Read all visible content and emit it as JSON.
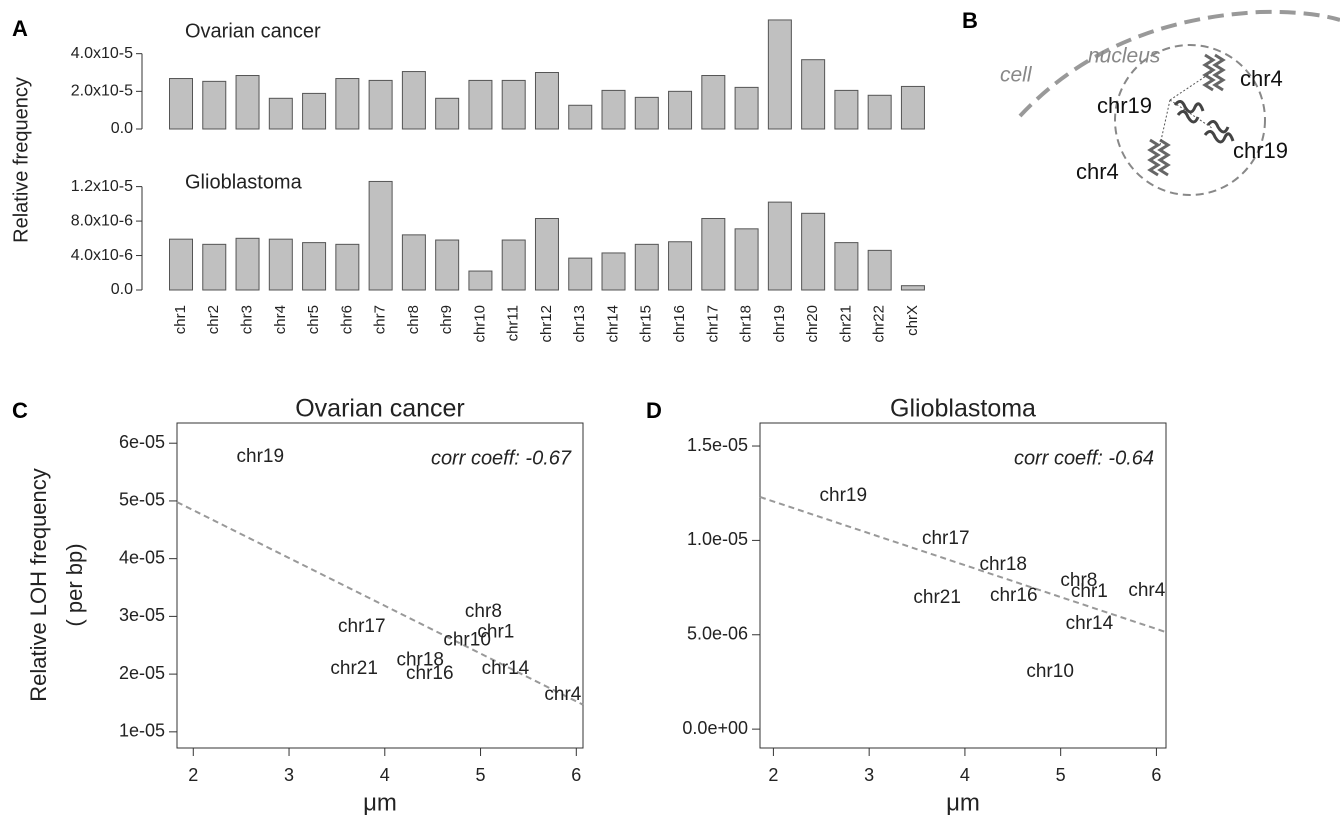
{
  "chart_data": [
    {
      "type": "bar",
      "label": "A",
      "ylabel": "Relative frequency",
      "color": "#c0c0c0",
      "categories": [
        "chr1",
        "chr2",
        "chr3",
        "chr4",
        "chr5",
        "chr6",
        "chr7",
        "chr8",
        "chr9",
        "chr10",
        "chr11",
        "chr12",
        "chr13",
        "chr14",
        "chr15",
        "chr16",
        "chr17",
        "chr18",
        "chr19",
        "chr20",
        "chr21",
        "chr22",
        "chrX"
      ],
      "series": [
        {
          "name": "Ovarian cancer",
          "values": [
            2.68e-05,
            2.53e-05,
            2.84e-05,
            1.63e-05,
            1.89e-05,
            2.68e-05,
            2.58e-05,
            3.05e-05,
            1.63e-05,
            2.58e-05,
            2.58e-05,
            3e-05,
            1.26e-05,
            2.05e-05,
            1.68e-05,
            2e-05,
            2.84e-05,
            2.21e-05,
            5.79e-05,
            3.68e-05,
            2.05e-05,
            1.79e-05,
            2.26e-05
          ],
          "ylim": [
            0,
            6e-05
          ],
          "yticks": [
            {
              "value": 0,
              "label": "0.0"
            },
            {
              "value": 2e-05,
              "label": "2.0x10-5"
            },
            {
              "value": 4e-05,
              "label": "4.0x10-5"
            }
          ]
        },
        {
          "name": "Glioblastoma",
          "values": [
            5.9e-06,
            5.3e-06,
            6e-06,
            5.9e-06,
            5.5e-06,
            5.3e-06,
            1.26e-05,
            6.4e-06,
            5.8e-06,
            2.2e-06,
            5.8e-06,
            8.3e-06,
            3.7e-06,
            4.3e-06,
            5.3e-06,
            5.6e-06,
            8.3e-06,
            7.1e-06,
            1.02e-05,
            8.9e-06,
            5.5e-06,
            4.6e-06,
            5e-07
          ],
          "ylim": [
            0,
            1.3e-05
          ],
          "yticks": [
            {
              "value": 0,
              "label": "0.0"
            },
            {
              "value": 4e-06,
              "label": "4.0x10-6"
            },
            {
              "value": 8e-06,
              "label": "8.0x10-6"
            },
            {
              "value": 1.2e-05,
              "label": "1.2x10-5"
            }
          ]
        }
      ]
    },
    {
      "type": "diagram",
      "label": "B",
      "cell": "cell",
      "nucleus": "nucleus",
      "chromosomes": [
        "chr4",
        "chr19",
        "chr19",
        "chr4"
      ]
    },
    {
      "type": "scatter",
      "label": "C",
      "title": "Ovarian cancer",
      "xlabel": "μm",
      "ylabel": [
        "Relative LOH frequency",
        "( per bp)"
      ],
      "annotation": "corr coeff: -0.67",
      "color": "#444",
      "point_labels": [
        "chr19",
        "chr17",
        "chr8",
        "chr1",
        "chr10",
        "chr21",
        "chr18",
        "chr16",
        "chr14",
        "chr4"
      ],
      "x": [
        2.7,
        3.76,
        5.03,
        5.16,
        4.86,
        3.68,
        4.37,
        4.47,
        5.26,
        5.86
      ],
      "values": [
        5.76e-05,
        2.82e-05,
        3.08e-05,
        2.72e-05,
        2.58e-05,
        2.09e-05,
        2.24e-05,
        2e-05,
        2.09e-05,
        1.64e-05
      ],
      "xlim": [
        1.83,
        6.07
      ],
      "ylim": [
        7.2e-06,
        6.35e-05
      ],
      "xticks": [
        2,
        3,
        4,
        5,
        6
      ],
      "yticks": [
        {
          "value": 1e-05,
          "label": "1e-05"
        },
        {
          "value": 2e-05,
          "label": "2e-05"
        },
        {
          "value": 3e-05,
          "label": "3e-05"
        },
        {
          "value": 4e-05,
          "label": "4e-05"
        },
        {
          "value": 5e-05,
          "label": "5e-05"
        },
        {
          "value": 6e-05,
          "label": "6e-05"
        }
      ],
      "trend_line": {
        "color": "#999",
        "x": [
          1.83,
          6.07
        ],
        "y": [
          4.98e-05,
          1.47e-05
        ]
      }
    },
    {
      "type": "scatter",
      "label": "D",
      "title": "Glioblastoma",
      "xlabel": "μm",
      "annotation": "corr coeff: -0.64",
      "color": "#444",
      "point_labels": [
        "chr19",
        "chr17",
        "chr18",
        "chr8",
        "chr1",
        "chr4",
        "chr21",
        "chr16",
        "chr14",
        "chr10"
      ],
      "x": [
        2.73,
        3.8,
        4.4,
        5.19,
        5.3,
        5.9,
        3.71,
        4.51,
        5.3,
        4.89
      ],
      "values": [
        1.235e-05,
        1.007e-05,
        8.7e-06,
        7.85e-06,
        7.26e-06,
        7.32e-06,
        6.95e-06,
        7.05e-06,
        5.57e-06,
        3.02e-06
      ],
      "xlim": [
        1.86,
        6.1
      ],
      "ylim": [
        -1e-06,
        1.622e-05
      ],
      "xticks": [
        2,
        3,
        4,
        5,
        6
      ],
      "yticks": [
        {
          "value": 0,
          "label": "0.0e+00"
        },
        {
          "value": 5e-06,
          "label": "5.0e-06"
        },
        {
          "value": 1e-05,
          "label": "1.0e-05"
        },
        {
          "value": 1.5e-05,
          "label": "1.5e-05"
        }
      ],
      "trend_line": {
        "color": "#999",
        "x": [
          1.86,
          6.1
        ],
        "y": [
          1.23e-05,
          5.14e-06
        ]
      }
    }
  ]
}
